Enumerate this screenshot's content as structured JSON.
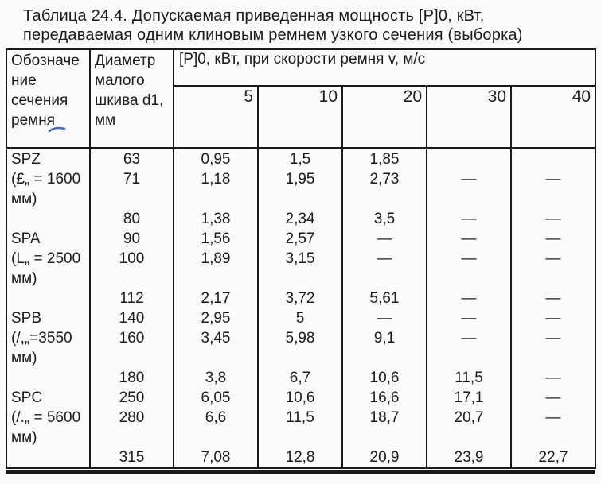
{
  "title": "Таблица 24.4. Допускаемая приведенная мощность [P]0, кВт,\nпередаваемая одним клиновым ремнем узкого сечения (выборка)",
  "table": {
    "col1_header": "Обозначе\nние\nсечения\nремня",
    "col2_header": "Диаметр\nмалого\nшкива d1,\nмм",
    "span_header": "[P]0, кВт, при скорости ремня v, м/с",
    "speed_headers": [
      "5",
      "10",
      "20",
      "30",
      "40"
    ],
    "body_rows": [
      [
        "SPZ",
        "63",
        "0,95",
        "1,5",
        "1,85",
        "",
        ""
      ],
      [
        "(£„ = 1600",
        "71",
        "1,18",
        "1,95",
        "2,73",
        "—",
        "—"
      ],
      [
        "мм)",
        "",
        "",
        "",
        "",
        "",
        ""
      ],
      [
        "",
        "80",
        "1,38",
        "2,34",
        "3,5",
        "—",
        "—"
      ],
      [
        "SPA",
        "90",
        "1,56",
        "2,57",
        "—",
        "—",
        "—"
      ],
      [
        "(L„ = 2500",
        "100",
        "1,89",
        "3,15",
        "—",
        "—",
        "—"
      ],
      [
        "мм)",
        "",
        "",
        "",
        "",
        "",
        ""
      ],
      [
        "",
        "112",
        "2,17",
        "3,72",
        "5,61",
        "—",
        "—"
      ],
      [
        "SPB",
        "140",
        "2,95",
        "5",
        "—",
        "—",
        "—"
      ],
      [
        "(/,„=3550",
        "160",
        "3,45",
        "5,98",
        "9,1",
        "—",
        "—"
      ],
      [
        "мм)",
        "",
        "",
        "",
        "",
        "",
        ""
      ],
      [
        "",
        "180",
        "3,8",
        "6,7",
        "10,6",
        "11,5",
        "—"
      ],
      [
        "SPC",
        "250",
        "6,05",
        "10,6",
        "16,6",
        "17,1",
        "—"
      ],
      [
        "(/.„ = 5600",
        "280",
        "6,6",
        "11,5",
        "18,7",
        "20,7",
        "—"
      ],
      [
        "мм)",
        "",
        "",
        "",
        "",
        "",
        ""
      ],
      [
        "",
        "315",
        "7,08",
        "12,8",
        "20,9",
        "23,9",
        "22,7"
      ]
    ]
  },
  "colors": {
    "border": "#1a1a1a",
    "text": "#1b1b1b",
    "paper": "#fcfcfa",
    "pen_mark": "#2f6bdf"
  }
}
